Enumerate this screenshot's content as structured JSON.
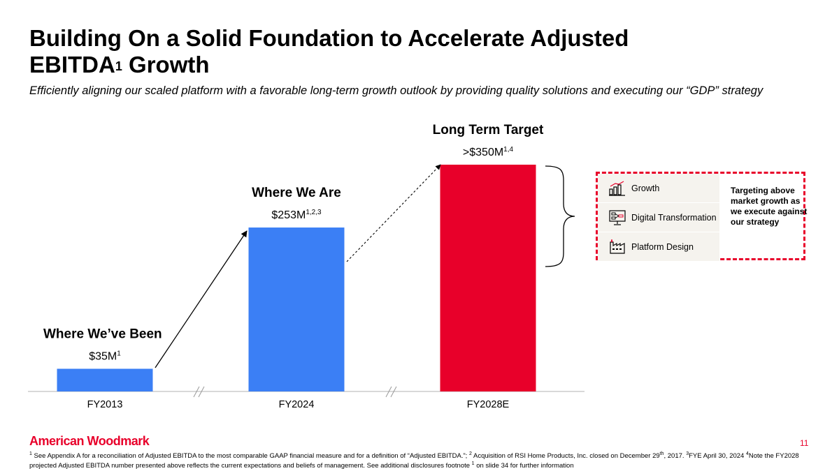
{
  "title": {
    "line1": "Building On a Solid Foundation to Accelerate Adjusted",
    "line2_pre": "EBITDA",
    "line2_sup": "1",
    "line2_post": " Growth"
  },
  "subtitle": "Efficiently aligning our scaled platform with a favorable long-term growth outlook by providing quality solutions and executing our “GDP” strategy",
  "chart_data": {
    "type": "bar",
    "categories": [
      "FY2013",
      "FY2024",
      "FY2028E"
    ],
    "values": [
      35,
      253,
      350
    ],
    "value_labels": [
      {
        "text": "$35M",
        "sup": "1"
      },
      {
        "text": "$253M",
        "sup": "1,2,3"
      },
      {
        "text": ">$350M",
        "sup": "1,4"
      }
    ],
    "bar_headings": [
      "Where We’ve Been",
      "Where We Are",
      "Long Term Target"
    ],
    "colors": [
      "#3b7ff5",
      "#3b7ff5",
      "#e8002a"
    ],
    "ylim": [
      0,
      350
    ],
    "axis_breaks": true,
    "title": "",
    "xlabel": "",
    "ylabel": ""
  },
  "strategy": {
    "items": [
      {
        "label": "Growth",
        "icon": "growth-chart-icon"
      },
      {
        "label": "Digital Transformation",
        "icon": "digital-transformation-icon"
      },
      {
        "label": "Platform Design",
        "icon": "factory-icon"
      }
    ],
    "note": "Targeting above market growth as we execute against our strategy",
    "border_color": "#e8002a"
  },
  "footer": {
    "logo": "American Woodmark",
    "page_number": "11",
    "fn1_sup": "1",
    "fn1": " See Appendix A for a reconciliation of Adjusted EBITDA to the most comparable GAAP financial measure and for a definition of “Adjusted EBITDA.”; ",
    "fn2_sup": "2",
    "fn2": " Acquisition of RSI Home Products, Inc. closed on December 29",
    "fn2_sup2": "th",
    "fn2_post": ", 2017.  ",
    "fn3_sup": "3",
    "fn3": "FYE April 30, 2024 ",
    "fn4_sup": "4",
    "fn4": "Note the FY2028 projected Adjusted EBITDA number presented above reflects the current expectations and beliefs of management. See additional disclosures footnote ",
    "fn5_sup": "1",
    "fn5": " on slide 34 for further information"
  }
}
